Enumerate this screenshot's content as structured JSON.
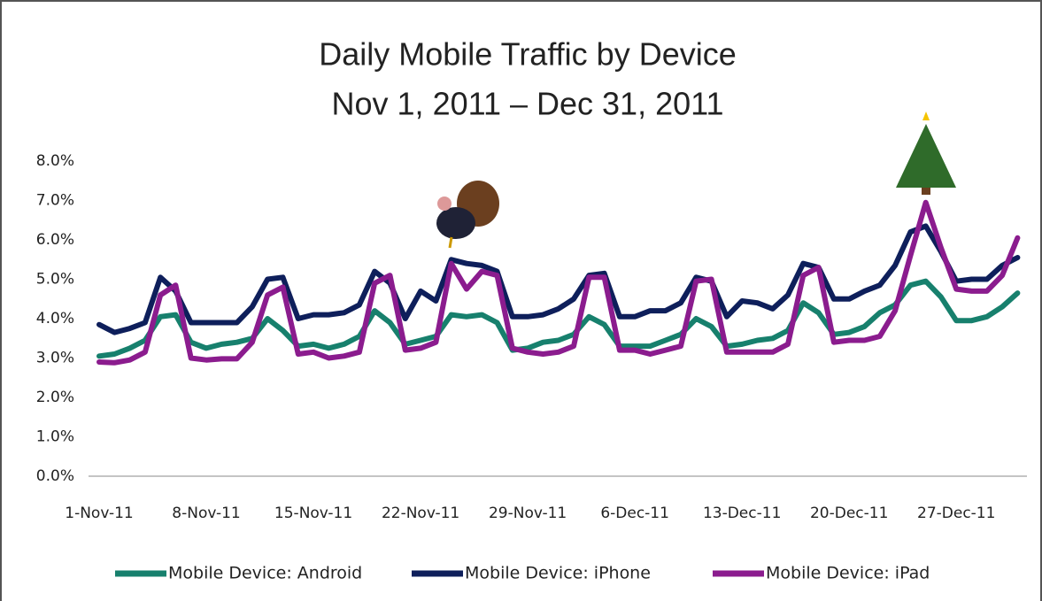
{
  "chart_data": {
    "type": "line",
    "title": "Daily Mobile Traffic by Device",
    "subtitle": "Nov 1, 2011 – Dec 31, 2011",
    "categories": [
      "1-Nov-11",
      null,
      null,
      null,
      null,
      null,
      null,
      "8-Nov-11",
      null,
      null,
      null,
      null,
      null,
      null,
      "15-Nov-11",
      null,
      null,
      null,
      null,
      null,
      null,
      "22-Nov-11",
      null,
      null,
      null,
      null,
      null,
      null,
      "29-Nov-11",
      null,
      null,
      null,
      null,
      null,
      null,
      "6-Dec-11",
      null,
      null,
      null,
      null,
      null,
      null,
      "13-Dec-11",
      null,
      null,
      null,
      null,
      null,
      null,
      "20-Dec-11",
      null,
      null,
      null,
      null,
      null,
      null,
      "27-Dec-11",
      null,
      null,
      null,
      null
    ],
    "series": [
      {
        "name": "Mobile Device: Android",
        "color": "#17806d",
        "values": [
          3.05,
          3.1,
          3.25,
          3.45,
          4.05,
          4.1,
          3.4,
          3.25,
          3.35,
          3.4,
          3.5,
          4.0,
          3.7,
          3.3,
          3.35,
          3.25,
          3.35,
          3.55,
          4.2,
          3.9,
          3.35,
          3.45,
          3.55,
          4.1,
          4.05,
          4.1,
          3.9,
          3.2,
          3.25,
          3.4,
          3.45,
          3.6,
          4.05,
          3.85,
          3.3,
          3.3,
          3.3,
          3.45,
          3.6,
          4.0,
          3.8,
          3.3,
          3.35,
          3.45,
          3.5,
          3.7,
          4.4,
          4.15,
          3.6,
          3.65,
          3.8,
          4.15,
          4.35,
          4.85,
          4.95,
          4.55,
          3.95,
          3.95,
          4.05,
          4.3,
          4.65
        ]
      },
      {
        "name": "Mobile Device: iPhone",
        "color": "#0e1f5b",
        "values": [
          3.85,
          3.65,
          3.75,
          3.9,
          5.05,
          4.7,
          3.9,
          3.9,
          3.9,
          3.9,
          4.3,
          5.0,
          5.05,
          4.0,
          4.1,
          4.1,
          4.15,
          4.35,
          5.2,
          4.9,
          4.0,
          4.7,
          4.45,
          5.5,
          5.4,
          5.35,
          5.2,
          4.05,
          4.05,
          4.1,
          4.25,
          4.5,
          5.1,
          5.15,
          4.05,
          4.05,
          4.2,
          4.2,
          4.4,
          5.05,
          4.95,
          4.05,
          4.45,
          4.4,
          4.25,
          4.6,
          5.4,
          5.3,
          4.5,
          4.5,
          4.7,
          4.85,
          5.35,
          6.2,
          6.35,
          5.7,
          4.95,
          5.0,
          5.0,
          5.35,
          5.55
        ]
      },
      {
        "name": "Mobile Device: iPad",
        "color": "#8b1c8e",
        "values": [
          2.9,
          2.88,
          2.95,
          3.15,
          4.6,
          4.85,
          3.0,
          2.95,
          2.98,
          2.98,
          3.4,
          4.6,
          4.8,
          3.1,
          3.15,
          3.0,
          3.05,
          3.15,
          4.9,
          5.1,
          3.2,
          3.25,
          3.4,
          5.4,
          4.75,
          5.2,
          5.1,
          3.25,
          3.15,
          3.1,
          3.15,
          3.3,
          5.05,
          5.05,
          3.2,
          3.2,
          3.1,
          3.2,
          3.3,
          4.95,
          5.0,
          3.15,
          3.15,
          3.15,
          3.15,
          3.35,
          5.1,
          5.3,
          3.4,
          3.45,
          3.45,
          3.55,
          4.2,
          5.6,
          6.95,
          5.8,
          4.75,
          4.7,
          4.7,
          5.1,
          6.05
        ]
      }
    ],
    "ylim": [
      0,
      8
    ],
    "yticks": [
      {
        "value": 0,
        "label": "0.0%"
      },
      {
        "value": 1,
        "label": "1.0%"
      },
      {
        "value": 2,
        "label": "2.0%"
      },
      {
        "value": 3,
        "label": "3.0%"
      },
      {
        "value": 4,
        "label": "4.0%"
      },
      {
        "value": 5,
        "label": "5.0%"
      },
      {
        "value": 6,
        "label": "6.0%"
      },
      {
        "value": 7,
        "label": "7.0%"
      },
      {
        "value": 8,
        "label": "8.0%"
      }
    ],
    "grid": false
  }
}
